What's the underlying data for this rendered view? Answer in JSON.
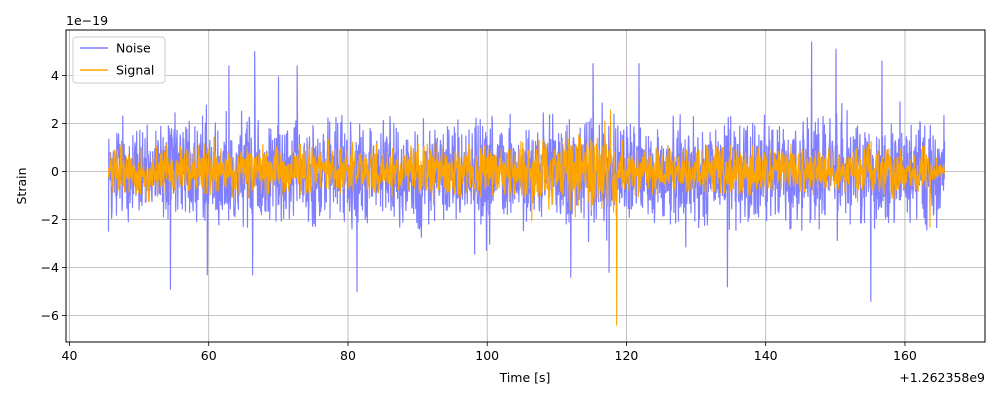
{
  "chart_data": {
    "type": "line",
    "title": "",
    "xlabel": "Time [s]",
    "ylabel": "Strain",
    "x_offset_label": "+1.262358e9",
    "y_scale_label": "1e−19",
    "xlim": [
      39.5,
      171.5
    ],
    "ylim": [
      -7.1,
      5.9
    ],
    "x_ticks": [
      40,
      60,
      80,
      100,
      120,
      140,
      160
    ],
    "x_tick_labels": [
      "40",
      "60",
      "80",
      "100",
      "120",
      "140",
      "160"
    ],
    "y_ticks": [
      -6,
      -4,
      -2,
      0,
      2,
      4
    ],
    "y_tick_labels": [
      "−6",
      "−4",
      "−2",
      "0",
      "2",
      "4"
    ],
    "grid": true,
    "legend_position": "upper-left",
    "series": [
      {
        "name": "Noise",
        "color": "#7f7fff",
        "x_start": 45.6,
        "x_end": 165.7,
        "typical_amplitude": 2.6,
        "peaks": [
          {
            "x": 54.5,
            "y": -4.9
          },
          {
            "x": 59.8,
            "y": -4.3
          },
          {
            "x": 62.9,
            "y": 4.4
          },
          {
            "x": 66.6,
            "y": 5.0
          },
          {
            "x": 66.3,
            "y": -4.3
          },
          {
            "x": 72.7,
            "y": 4.4
          },
          {
            "x": 81.3,
            "y": -5.0
          },
          {
            "x": 112.0,
            "y": -4.4
          },
          {
            "x": 115.2,
            "y": 4.5
          },
          {
            "x": 117.5,
            "y": -4.2
          },
          {
            "x": 121.8,
            "y": 4.5
          },
          {
            "x": 134.5,
            "y": -4.8
          },
          {
            "x": 146.6,
            "y": 5.4
          },
          {
            "x": 150.1,
            "y": 5.1
          },
          {
            "x": 155.1,
            "y": -5.4
          },
          {
            "x": 156.7,
            "y": 4.6
          }
        ]
      },
      {
        "name": "Signal",
        "color": "#ffa500",
        "x_start": 45.6,
        "x_end": 165.7,
        "typical_amplitude": 1.2,
        "peaks": [
          {
            "x": 118.6,
            "y": 4.8
          },
          {
            "x": 118.6,
            "y": -6.4
          },
          {
            "x": 116.9,
            "y": 2.1
          },
          {
            "x": 163.6,
            "y": 2.0
          },
          {
            "x": 163.6,
            "y": -2.3
          }
        ]
      }
    ]
  }
}
